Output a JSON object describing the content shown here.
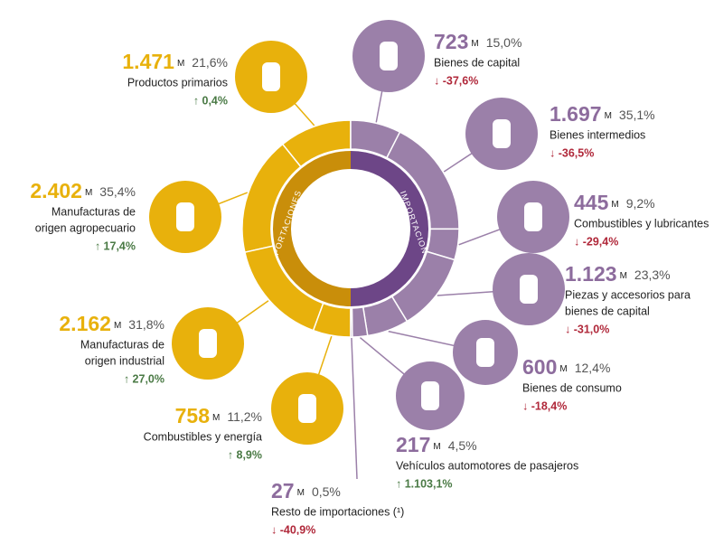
{
  "donut": {
    "exports_label": "EXPORTACIONES",
    "imports_label": "IMPORTACIONES"
  },
  "exports": [
    {
      "value": "1.471",
      "unit": "M",
      "share": 21.6,
      "share_label": "21,6%",
      "lines": [
        "Productos primarios"
      ],
      "change": "↑ 0,4%"
    },
    {
      "value": "2.402",
      "unit": "M",
      "share": 35.4,
      "share_label": "35,4%",
      "lines": [
        "Manufacturas de",
        "origen agropecuario"
      ],
      "change": "↑ 17,4%"
    },
    {
      "value": "2.162",
      "unit": "M",
      "share": 31.8,
      "share_label": "31,8%",
      "lines": [
        "Manufacturas de",
        "origen industrial"
      ],
      "change": "↑ 27,0%"
    },
    {
      "value": "758",
      "unit": "M",
      "share": 11.2,
      "share_label": "11,2%",
      "lines": [
        "Combustibles y energía"
      ],
      "change": "↑ 8,9%"
    }
  ],
  "imports": [
    {
      "value": "723",
      "unit": "M",
      "share": 15.0,
      "share_label": "15,0%",
      "lines": [
        "Bienes de capital"
      ],
      "change": "↓ -37,6%"
    },
    {
      "value": "1.697",
      "unit": "M",
      "share": 35.1,
      "share_label": "35,1%",
      "lines": [
        "Bienes intermedios"
      ],
      "change": "↓ -36,5%"
    },
    {
      "value": "445",
      "unit": "M",
      "share": 9.2,
      "share_label": "9,2%",
      "lines": [
        "Combustibles y lubricantes"
      ],
      "change": "↓ -29,4%"
    },
    {
      "value": "1.123",
      "unit": "M",
      "share": 23.3,
      "share_label": "23,3%",
      "lines": [
        "Piezas y accesorios para",
        "bienes de capital"
      ],
      "change": "↓ -31,0%"
    },
    {
      "value": "600",
      "unit": "M",
      "share": 12.4,
      "share_label": "12,4%",
      "lines": [
        "Bienes de consumo"
      ],
      "change": "↓ -18,4%"
    },
    {
      "value": "217",
      "unit": "M",
      "share": 4.5,
      "share_label": "4,5%",
      "lines": [
        "Vehículos automotores de pasajeros"
      ],
      "change": "↑ 1.103,1%"
    },
    {
      "value": "27",
      "unit": "M",
      "share": 0.5,
      "share_label": "0,5%",
      "lines": [
        "Resto de importaciones (¹)"
      ],
      "change": "↓ -40,9%"
    }
  ]
}
